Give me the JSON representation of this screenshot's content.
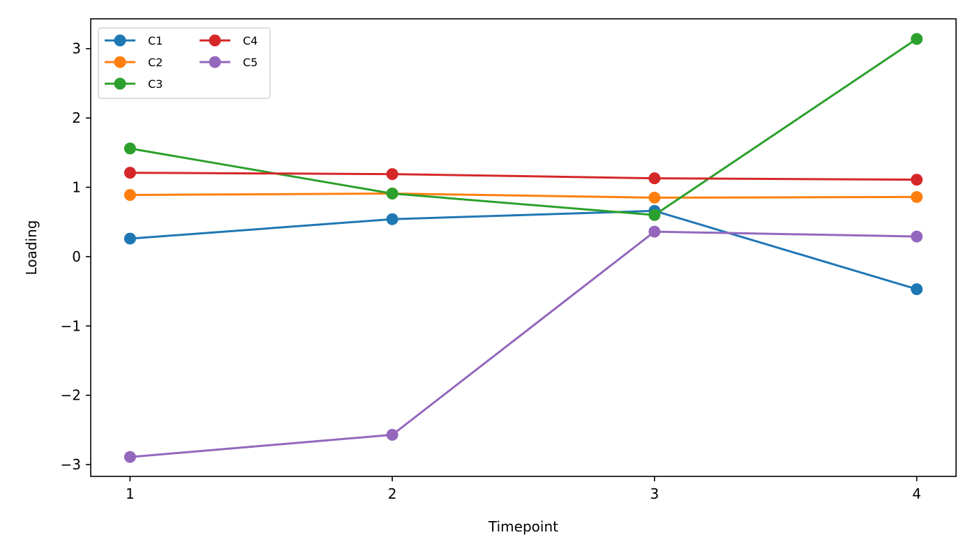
{
  "chart_data": {
    "type": "line",
    "title": "",
    "xlabel": "Timepoint",
    "ylabel": "Loading",
    "x": [
      1,
      2,
      3,
      4
    ],
    "xlim": [
      0.85,
      4.15
    ],
    "ylim": [
      -3.17,
      3.43
    ],
    "xticks": [
      1,
      2,
      3,
      4
    ],
    "yticks": [
      -3,
      -2,
      -1,
      0,
      1,
      2,
      3
    ],
    "grid": false,
    "legend_position": "top-left",
    "legend_columns": 2,
    "series": [
      {
        "name": "C1",
        "color": "#1f77b4",
        "values": [
          0.26,
          0.54,
          0.66,
          -0.47
        ]
      },
      {
        "name": "C2",
        "color": "#ff7f0e",
        "values": [
          0.89,
          0.91,
          0.85,
          0.86
        ]
      },
      {
        "name": "C3",
        "color": "#2ca02c",
        "values": [
          1.56,
          0.91,
          0.6,
          3.14
        ]
      },
      {
        "name": "C4",
        "color": "#d62728",
        "values": [
          1.21,
          1.19,
          1.13,
          1.11
        ]
      },
      {
        "name": "C5",
        "color": "#9467bd",
        "values": [
          -2.89,
          -2.57,
          0.36,
          0.29
        ]
      }
    ]
  }
}
